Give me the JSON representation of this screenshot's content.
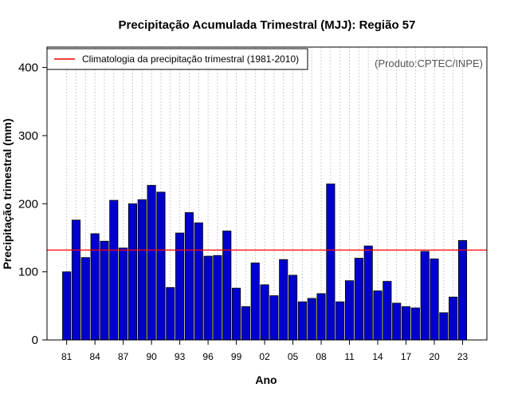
{
  "chart_data": {
    "type": "bar",
    "title": "Precipitação Acumulada Trimestral (MJJ): Região 57",
    "xlabel": "Ano",
    "ylabel": "Precipitação trimestral (mm)",
    "source": "(Produto:CPTEC/INPE)",
    "legend": {
      "label": "Climatologia da precipitação trimestral (1981-2010)",
      "position": "top-left",
      "color": "#ff0000"
    },
    "climatology": 132,
    "ylim": [
      0,
      430
    ],
    "yticks": [
      0,
      100,
      200,
      300,
      400
    ],
    "bar_color": "#0000cc",
    "grid_color": "#cccccc",
    "years": [
      1981,
      1982,
      1983,
      1984,
      1985,
      1986,
      1987,
      1988,
      1989,
      1990,
      1991,
      1992,
      1993,
      1994,
      1995,
      1996,
      1997,
      1998,
      1999,
      2000,
      2001,
      2002,
      2003,
      2004,
      2005,
      2006,
      2007,
      2008,
      2009,
      2010,
      2011,
      2012,
      2013,
      2014,
      2015,
      2016,
      2017,
      2018,
      2019,
      2020,
      2021,
      2022,
      2023
    ],
    "values": [
      100,
      176,
      121,
      156,
      145,
      205,
      135,
      200,
      206,
      227,
      217,
      77,
      157,
      187,
      172,
      123,
      124,
      160,
      76,
      49,
      113,
      81,
      65,
      118,
      95,
      56,
      61,
      68,
      229,
      56,
      87,
      120,
      138,
      72,
      86,
      54,
      49,
      47,
      130,
      119,
      40,
      63,
      146
    ],
    "xtick_labels": [
      "81",
      "84",
      "87",
      "90",
      "93",
      "96",
      "99",
      "02",
      "05",
      "08",
      "11",
      "14",
      "17",
      "20",
      "23"
    ],
    "xtick_years": [
      1981,
      1984,
      1987,
      1990,
      1993,
      1996,
      1999,
      2002,
      2005,
      2008,
      2011,
      2014,
      2017,
      2020,
      2023
    ]
  }
}
